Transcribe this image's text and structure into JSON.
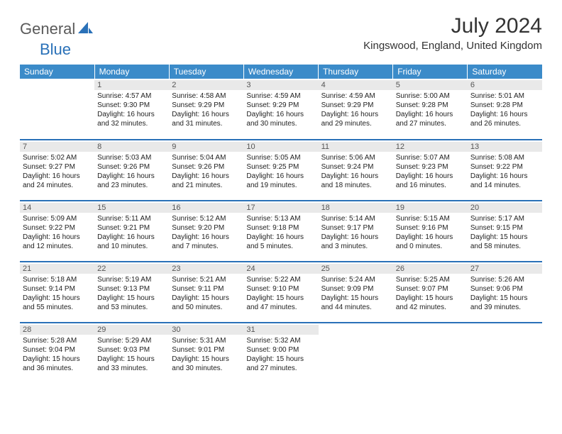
{
  "logo": {
    "general": "General",
    "blue": "Blue",
    "accent_color": "#2a71b8"
  },
  "title": "July 2024",
  "location": "Kingswood, England, United Kingdom",
  "header_bg": "#3b8bc9",
  "header_fg": "#ffffff",
  "daynum_bg": "#e9e9e9",
  "rule_color": "#2a71b8",
  "columns": [
    "Sunday",
    "Monday",
    "Tuesday",
    "Wednesday",
    "Thursday",
    "Friday",
    "Saturday"
  ],
  "weeks": [
    [
      null,
      {
        "n": "1",
        "sunrise": "4:57 AM",
        "sunset": "9:30 PM",
        "daylight": "16 hours and 32 minutes."
      },
      {
        "n": "2",
        "sunrise": "4:58 AM",
        "sunset": "9:29 PM",
        "daylight": "16 hours and 31 minutes."
      },
      {
        "n": "3",
        "sunrise": "4:59 AM",
        "sunset": "9:29 PM",
        "daylight": "16 hours and 30 minutes."
      },
      {
        "n": "4",
        "sunrise": "4:59 AM",
        "sunset": "9:29 PM",
        "daylight": "16 hours and 29 minutes."
      },
      {
        "n": "5",
        "sunrise": "5:00 AM",
        "sunset": "9:28 PM",
        "daylight": "16 hours and 27 minutes."
      },
      {
        "n": "6",
        "sunrise": "5:01 AM",
        "sunset": "9:28 PM",
        "daylight": "16 hours and 26 minutes."
      }
    ],
    [
      {
        "n": "7",
        "sunrise": "5:02 AM",
        "sunset": "9:27 PM",
        "daylight": "16 hours and 24 minutes."
      },
      {
        "n": "8",
        "sunrise": "5:03 AM",
        "sunset": "9:26 PM",
        "daylight": "16 hours and 23 minutes."
      },
      {
        "n": "9",
        "sunrise": "5:04 AM",
        "sunset": "9:26 PM",
        "daylight": "16 hours and 21 minutes."
      },
      {
        "n": "10",
        "sunrise": "5:05 AM",
        "sunset": "9:25 PM",
        "daylight": "16 hours and 19 minutes."
      },
      {
        "n": "11",
        "sunrise": "5:06 AM",
        "sunset": "9:24 PM",
        "daylight": "16 hours and 18 minutes."
      },
      {
        "n": "12",
        "sunrise": "5:07 AM",
        "sunset": "9:23 PM",
        "daylight": "16 hours and 16 minutes."
      },
      {
        "n": "13",
        "sunrise": "5:08 AM",
        "sunset": "9:22 PM",
        "daylight": "16 hours and 14 minutes."
      }
    ],
    [
      {
        "n": "14",
        "sunrise": "5:09 AM",
        "sunset": "9:22 PM",
        "daylight": "16 hours and 12 minutes."
      },
      {
        "n": "15",
        "sunrise": "5:11 AM",
        "sunset": "9:21 PM",
        "daylight": "16 hours and 10 minutes."
      },
      {
        "n": "16",
        "sunrise": "5:12 AM",
        "sunset": "9:20 PM",
        "daylight": "16 hours and 7 minutes."
      },
      {
        "n": "17",
        "sunrise": "5:13 AM",
        "sunset": "9:18 PM",
        "daylight": "16 hours and 5 minutes."
      },
      {
        "n": "18",
        "sunrise": "5:14 AM",
        "sunset": "9:17 PM",
        "daylight": "16 hours and 3 minutes."
      },
      {
        "n": "19",
        "sunrise": "5:15 AM",
        "sunset": "9:16 PM",
        "daylight": "16 hours and 0 minutes."
      },
      {
        "n": "20",
        "sunrise": "5:17 AM",
        "sunset": "9:15 PM",
        "daylight": "15 hours and 58 minutes."
      }
    ],
    [
      {
        "n": "21",
        "sunrise": "5:18 AM",
        "sunset": "9:14 PM",
        "daylight": "15 hours and 55 minutes."
      },
      {
        "n": "22",
        "sunrise": "5:19 AM",
        "sunset": "9:13 PM",
        "daylight": "15 hours and 53 minutes."
      },
      {
        "n": "23",
        "sunrise": "5:21 AM",
        "sunset": "9:11 PM",
        "daylight": "15 hours and 50 minutes."
      },
      {
        "n": "24",
        "sunrise": "5:22 AM",
        "sunset": "9:10 PM",
        "daylight": "15 hours and 47 minutes."
      },
      {
        "n": "25",
        "sunrise": "5:24 AM",
        "sunset": "9:09 PM",
        "daylight": "15 hours and 44 minutes."
      },
      {
        "n": "26",
        "sunrise": "5:25 AM",
        "sunset": "9:07 PM",
        "daylight": "15 hours and 42 minutes."
      },
      {
        "n": "27",
        "sunrise": "5:26 AM",
        "sunset": "9:06 PM",
        "daylight": "15 hours and 39 minutes."
      }
    ],
    [
      {
        "n": "28",
        "sunrise": "5:28 AM",
        "sunset": "9:04 PM",
        "daylight": "15 hours and 36 minutes."
      },
      {
        "n": "29",
        "sunrise": "5:29 AM",
        "sunset": "9:03 PM",
        "daylight": "15 hours and 33 minutes."
      },
      {
        "n": "30",
        "sunrise": "5:31 AM",
        "sunset": "9:01 PM",
        "daylight": "15 hours and 30 minutes."
      },
      {
        "n": "31",
        "sunrise": "5:32 AM",
        "sunset": "9:00 PM",
        "daylight": "15 hours and 27 minutes."
      },
      null,
      null,
      null
    ]
  ],
  "labels": {
    "sunrise": "Sunrise:",
    "sunset": "Sunset:",
    "daylight": "Daylight:"
  }
}
